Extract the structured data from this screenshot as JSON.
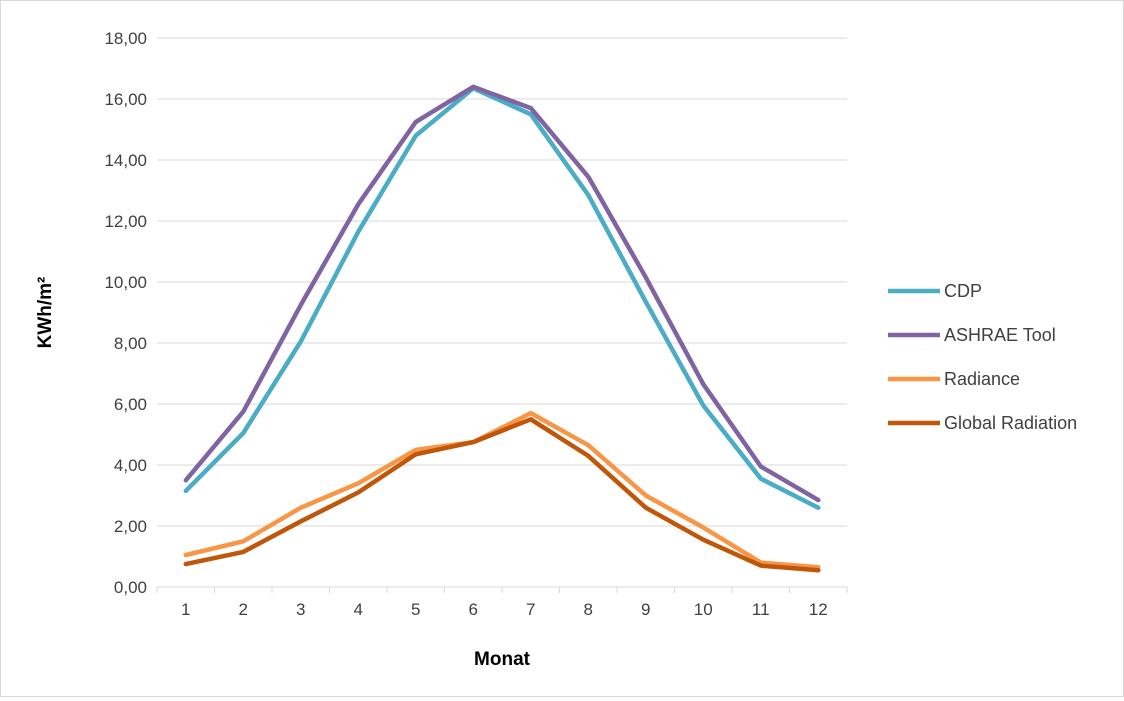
{
  "chart_data": {
    "type": "line",
    "title": "",
    "xlabel": "Monat",
    "ylabel": "KWh/m²",
    "categories": [
      "1",
      "2",
      "3",
      "4",
      "5",
      "6",
      "7",
      "8",
      "9",
      "10",
      "11",
      "12"
    ],
    "ylim": [
      0,
      18
    ],
    "y_ticks": [
      "0,00",
      "2,00",
      "4,00",
      "6,00",
      "8,00",
      "10,00",
      "12,00",
      "14,00",
      "16,00",
      "18,00"
    ],
    "grid": "horizontal",
    "legend_position": "right",
    "series": [
      {
        "name": "CDP",
        "color": "#4BACC6",
        "values": [
          3.15,
          5.05,
          8.05,
          11.65,
          14.8,
          16.35,
          15.5,
          12.85,
          9.35,
          5.95,
          3.55,
          2.6
        ]
      },
      {
        "name": "ASHRAE Tool",
        "color": "#8064A2",
        "values": [
          3.5,
          5.75,
          9.25,
          12.55,
          15.25,
          16.4,
          15.7,
          13.45,
          10.15,
          6.65,
          3.95,
          2.85
        ]
      },
      {
        "name": "Radiance",
        "color": "#F79646",
        "values": [
          1.05,
          1.5,
          2.6,
          3.4,
          4.5,
          4.75,
          5.7,
          4.65,
          3.0,
          1.95,
          0.8,
          0.65
        ]
      },
      {
        "name": "Global Radiation",
        "color": "#C0560A",
        "values": [
          0.75,
          1.15,
          2.15,
          3.1,
          4.35,
          4.75,
          5.5,
          4.3,
          2.6,
          1.55,
          0.7,
          0.55
        ]
      }
    ]
  }
}
